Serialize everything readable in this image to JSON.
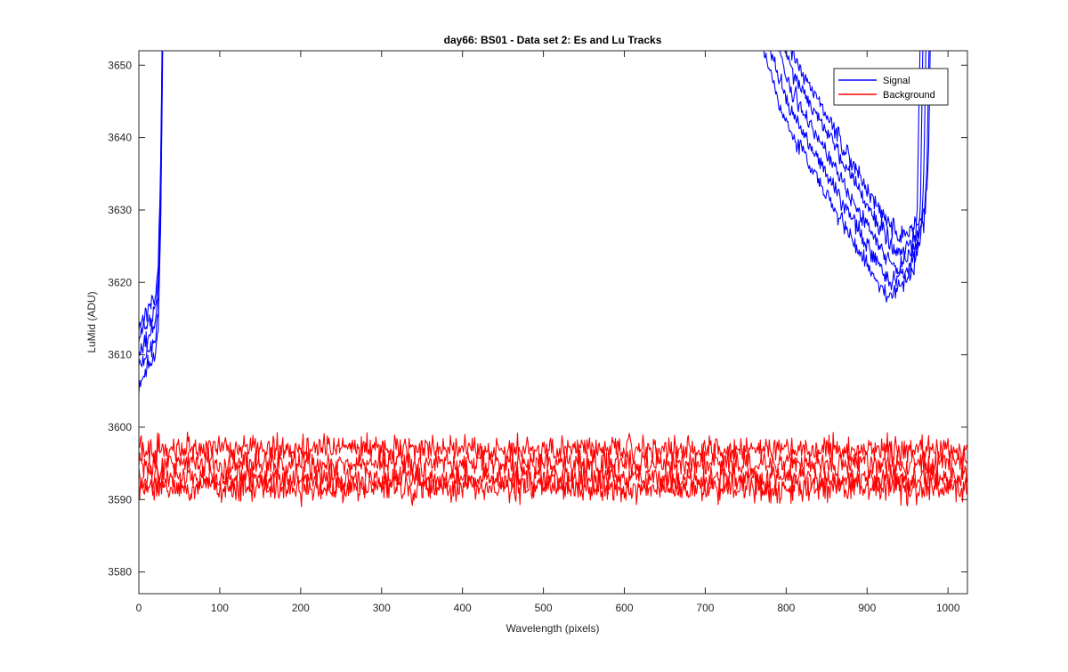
{
  "chart_data": {
    "type": "line",
    "title": "day66: BS01 - Data set 2: Es and Lu Tracks",
    "xlabel": "Wavelength (pixels)",
    "ylabel": "LuMid (ADU)",
    "xlim": [
      0,
      1024
    ],
    "ylim": [
      3577,
      3652
    ],
    "xticks": [
      0,
      100,
      200,
      300,
      400,
      500,
      600,
      700,
      800,
      900,
      1000
    ],
    "yticks": [
      3580,
      3590,
      3600,
      3610,
      3620,
      3630,
      3640,
      3650
    ],
    "grid": false,
    "legend": {
      "position": "top-right",
      "entries": [
        "Signal",
        "Background"
      ]
    },
    "colors": {
      "Signal": "#0000ff",
      "Background": "#ff0000"
    },
    "signal_shape": {
      "x": [
        0,
        10,
        20,
        24,
        27,
        30,
        760,
        800,
        850,
        900,
        930,
        950,
        962,
        966,
        970
      ],
      "y": [
        3608,
        3610,
        3612,
        3616,
        3630,
        3660,
        3660,
        3645,
        3635,
        3625,
        3620,
        3622,
        3624,
        3632,
        3660
      ]
    },
    "series": [
      {
        "name": "Signal",
        "y_offset": 0.0,
        "x_shift": 0
      },
      {
        "name": "Signal",
        "y_offset": 2.0,
        "x_shift": 4
      },
      {
        "name": "Signal",
        "y_offset": 4.0,
        "x_shift": 8
      },
      {
        "name": "Signal",
        "y_offset": -2.0,
        "x_shift": -4
      },
      {
        "name": "Signal",
        "y_offset": 6.0,
        "x_shift": 10
      },
      {
        "name": "Background",
        "mean": 3597.0,
        "noise": 1.3
      },
      {
        "name": "Background",
        "mean": 3595.0,
        "noise": 1.3
      },
      {
        "name": "Background",
        "mean": 3593.0,
        "noise": 1.3
      },
      {
        "name": "Background",
        "mean": 3591.5,
        "noise": 1.3
      }
    ]
  }
}
